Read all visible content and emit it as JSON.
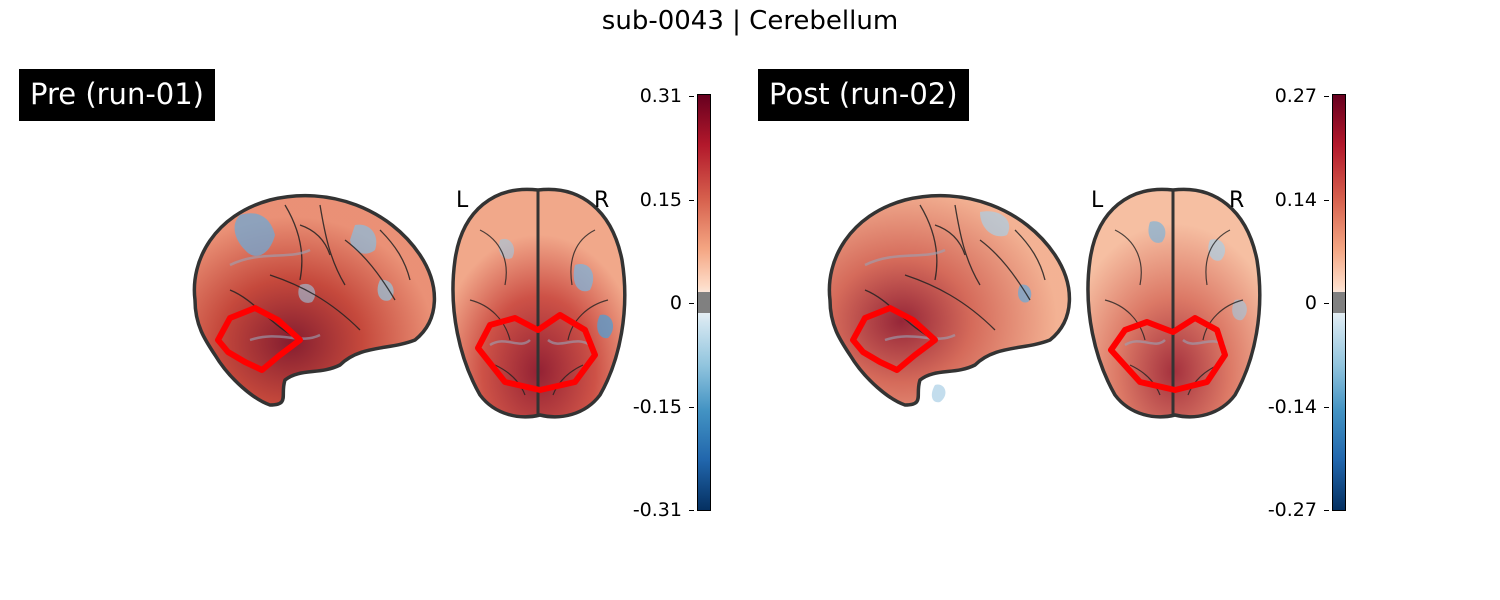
{
  "figure": {
    "title": "sub-0043 | Cerebellum"
  },
  "panels": [
    {
      "label": "Pre (run-01)",
      "colorbar": {
        "max": "0.31",
        "upper": "0.15",
        "zero": "0",
        "lower": "-0.15",
        "min": "-0.31"
      },
      "orientation": {
        "left": "L",
        "right": "R"
      }
    },
    {
      "label": "Post (run-02)",
      "colorbar": {
        "max": "0.27",
        "upper": "0.14",
        "zero": "0",
        "lower": "-0.14",
        "min": "-0.27"
      },
      "orientation": {
        "left": "L",
        "right": "R"
      }
    }
  ],
  "colors": {
    "roi_outline": "#ff0000",
    "colormap": "RdBu_r",
    "label_background": "#000000",
    "threshold_band": "#808080"
  }
}
